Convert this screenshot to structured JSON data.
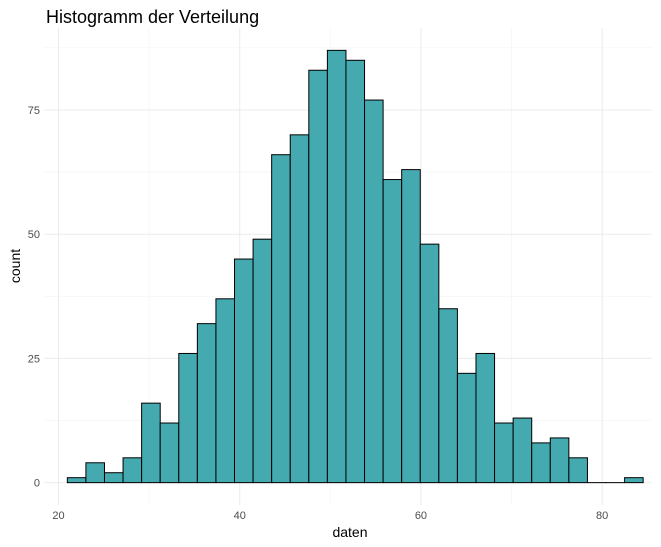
{
  "chart_data": {
    "type": "bar",
    "title": "Histogramm der Verteilung",
    "xlabel": "daten",
    "ylabel": "count",
    "bar_color": "#45AAB0",
    "bar_outline": "#000000",
    "bin_width": 2.05,
    "bins": [
      {
        "x": 22.0,
        "count": 1
      },
      {
        "x": 24.05,
        "count": 4
      },
      {
        "x": 26.1,
        "count": 2
      },
      {
        "x": 28.15,
        "count": 5
      },
      {
        "x": 30.2,
        "count": 16
      },
      {
        "x": 32.25,
        "count": 12
      },
      {
        "x": 34.3,
        "count": 26
      },
      {
        "x": 36.35,
        "count": 32
      },
      {
        "x": 38.4,
        "count": 37
      },
      {
        "x": 40.45,
        "count": 45
      },
      {
        "x": 42.5,
        "count": 49
      },
      {
        "x": 44.55,
        "count": 66
      },
      {
        "x": 46.6,
        "count": 70
      },
      {
        "x": 48.65,
        "count": 83
      },
      {
        "x": 50.7,
        "count": 87
      },
      {
        "x": 52.75,
        "count": 85
      },
      {
        "x": 54.8,
        "count": 77
      },
      {
        "x": 56.85,
        "count": 61
      },
      {
        "x": 58.9,
        "count": 63
      },
      {
        "x": 60.95,
        "count": 48
      },
      {
        "x": 63.0,
        "count": 35
      },
      {
        "x": 65.05,
        "count": 22
      },
      {
        "x": 67.1,
        "count": 26
      },
      {
        "x": 69.15,
        "count": 12
      },
      {
        "x": 71.2,
        "count": 13
      },
      {
        "x": 73.25,
        "count": 8
      },
      {
        "x": 75.3,
        "count": 9
      },
      {
        "x": 77.35,
        "count": 5
      },
      {
        "x": 79.4,
        "count": 0
      },
      {
        "x": 81.45,
        "count": 0
      },
      {
        "x": 83.5,
        "count": 1
      }
    ],
    "xlim": [
      18.4,
      85.5
    ],
    "ylim": [
      -4.5,
      91.5
    ],
    "x_ticks": [
      20,
      40,
      60,
      80
    ],
    "x_tick_labels": [
      "20",
      "40",
      "60",
      "80"
    ],
    "y_ticks": [
      0,
      25,
      50,
      75
    ],
    "y_tick_labels": [
      "0",
      "25",
      "50",
      "75"
    ],
    "grid": true,
    "legend": "none"
  }
}
